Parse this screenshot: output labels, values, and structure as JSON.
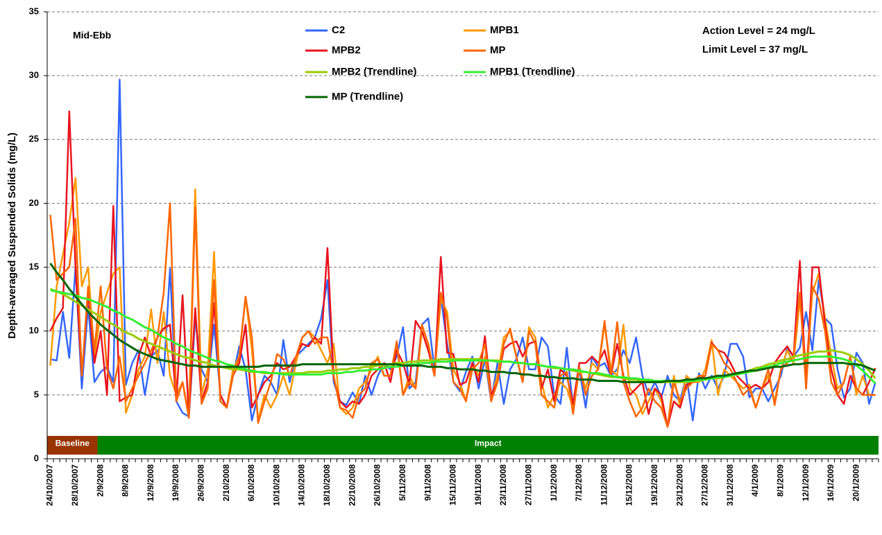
{
  "chart_data": {
    "type": "line",
    "y_label": "Depth-averaged Suspended Solids (mg/L)",
    "annotations": [
      "Mid-Ebb",
      "Action Level = 24 mg/L",
      "Limit Level = 37 mg/L"
    ],
    "phases": [
      {
        "label": "Baseline",
        "color": "#993300"
      },
      {
        "label": "Impact",
        "color": "#008000"
      }
    ],
    "ylim": [
      0,
      35
    ],
    "yticks": [
      0,
      5,
      10,
      15,
      20,
      25,
      30,
      35
    ],
    "grid": true,
    "categories": [
      "24/10/2007",
      null,
      null,
      null,
      "28/10/2007",
      null,
      null,
      null,
      "2/9/2008",
      null,
      null,
      null,
      "8/9/2008",
      null,
      null,
      null,
      "12/9/2008",
      null,
      null,
      null,
      "19/9/2008",
      null,
      null,
      null,
      "26/9/2008",
      null,
      null,
      null,
      "2/10/2008",
      null,
      null,
      null,
      "6/10/2008",
      null,
      null,
      null,
      "10/10/2008",
      null,
      null,
      null,
      "14/10/2008",
      null,
      null,
      null,
      "18/10/2008",
      null,
      null,
      null,
      "22/10/2008",
      null,
      null,
      null,
      "26/10/2008",
      null,
      null,
      null,
      "5/11/2008",
      null,
      null,
      null,
      "9/11/2008",
      null,
      null,
      null,
      "15/11/2008",
      null,
      null,
      null,
      "19/11/2008",
      null,
      null,
      null,
      "23/11/2008",
      null,
      null,
      null,
      "27/11/2008",
      null,
      null,
      null,
      "1/12/2008",
      null,
      null,
      null,
      "7/12/2008",
      null,
      null,
      null,
      "11/12/2008",
      null,
      null,
      null,
      "15/12/2008",
      null,
      null,
      null,
      "19/12/2008",
      null,
      null,
      null,
      "23/12/2008",
      null,
      null,
      null,
      "27/12/2008",
      null,
      null,
      null,
      "31/12/2008",
      null,
      null,
      null,
      "4/1/2009",
      null,
      null,
      null,
      "8/1/2009",
      null,
      null,
      null,
      "12/1/2009",
      null,
      null,
      null,
      "16/1/2009",
      null,
      null,
      null,
      "20/1/2009",
      null,
      null,
      null
    ],
    "series": [
      {
        "name": "C2",
        "color": "#3366ff",
        "values": [
          7.8,
          7.7,
          11.5,
          7.9,
          15.0,
          5.5,
          12.0,
          6.0,
          6.8,
          7.2,
          6.0,
          29.7,
          5.8,
          7.5,
          8.5,
          5.0,
          8.0,
          8.5,
          6.5,
          14.9,
          4.5,
          3.6,
          3.3,
          11.0,
          7.0,
          6.0,
          10.5,
          5.0,
          4.0,
          6.5,
          8.8,
          7.0,
          3.0,
          5.0,
          6.5,
          6.0,
          5.0,
          9.3,
          6.0,
          8.0,
          8.5,
          9.0,
          9.5,
          11.0,
          14.0,
          6.0,
          4.5,
          4.2,
          5.2,
          4.3,
          6.5,
          5.0,
          6.5,
          7.5,
          7.0,
          8.0,
          10.3,
          5.5,
          6.0,
          10.5,
          11.0,
          7.0,
          12.7,
          9.0,
          6.0,
          5.3,
          6.8,
          8.0,
          5.5,
          7.8,
          4.5,
          7.5,
          4.3,
          7.0,
          7.8,
          9.5,
          7.0,
          7.0,
          9.5,
          8.8,
          5.0,
          4.3,
          8.7,
          4.0,
          7.0,
          4.0,
          8.0,
          7.2,
          7.5,
          6.5,
          7.0,
          8.5,
          7.5,
          9.5,
          6.5,
          5.0,
          6.0,
          4.8,
          6.5,
          5.0,
          4.5,
          6.5,
          3.0,
          6.7,
          5.5,
          6.5,
          5.5,
          6.5,
          9.0,
          9.0,
          8.0,
          4.8,
          5.5,
          5.5,
          4.5,
          5.5,
          6.5,
          8.7,
          8.0,
          8.7,
          11.5,
          8.5,
          14.0,
          11.0,
          10.5,
          7.0,
          4.8,
          5.5,
          8.3,
          7.5,
          4.3,
          6.0
        ]
      },
      {
        "name": "MPB1",
        "color": "#ff9900",
        "values": [
          7.3,
          13.5,
          16.0,
          18.5,
          22.0,
          13.5,
          15.0,
          8.0,
          11.5,
          13.0,
          14.5,
          15.0,
          3.6,
          5.0,
          7.0,
          8.0,
          11.7,
          7.5,
          11.5,
          6.5,
          5.0,
          6.0,
          3.5,
          21.1,
          5.0,
          7.0,
          16.2,
          4.5,
          4.0,
          7.0,
          8.0,
          12.7,
          8.5,
          3.0,
          5.0,
          4.0,
          5.0,
          6.5,
          5.0,
          7.5,
          9.5,
          10.0,
          9.5,
          8.5,
          7.5,
          9.0,
          4.0,
          3.5,
          4.0,
          5.5,
          6.0,
          7.0,
          8.0,
          6.5,
          6.5,
          9.0,
          5.0,
          6.5,
          5.5,
          10.0,
          8.5,
          6.7,
          12.5,
          11.5,
          7.0,
          6.0,
          4.5,
          7.5,
          6.5,
          8.0,
          4.8,
          6.5,
          9.5,
          10.0,
          8.0,
          6.0,
          10.3,
          9.5,
          6.0,
          4.0,
          5.0,
          6.0,
          5.5,
          4.0,
          7.0,
          5.5,
          7.5,
          7.0,
          10.5,
          7.0,
          6.5,
          10.5,
          5.5,
          5.0,
          3.5,
          4.5,
          5.5,
          4.5,
          2.5,
          6.5,
          4.0,
          6.5,
          6.0,
          6.0,
          7.0,
          9.3,
          5.0,
          7.0,
          6.5,
          6.0,
          5.5,
          5.8,
          4.0,
          5.5,
          6.5,
          4.5,
          7.0,
          8.5,
          7.5,
          12.5,
          7.0,
          13.0,
          14.5,
          11.0,
          8.0,
          5.5,
          6.0,
          8.0,
          5.0,
          6.5,
          5.0,
          5.0
        ]
      },
      {
        "name": "MPB2",
        "color": "#e8141e",
        "values": [
          10.0,
          11.0,
          11.8,
          27.2,
          15.0,
          6.5,
          13.0,
          7.5,
          10.0,
          5.0,
          19.8,
          4.5,
          4.8,
          5.0,
          8.0,
          9.5,
          8.0,
          9.5,
          10.2,
          10.5,
          4.5,
          12.8,
          3.3,
          11.8,
          4.5,
          6.0,
          12.2,
          5.0,
          4.0,
          6.5,
          7.5,
          10.5,
          4.0,
          5.0,
          6.0,
          6.5,
          7.5,
          7.0,
          7.2,
          8.0,
          9.0,
          8.8,
          9.5,
          9.0,
          16.5,
          6.3,
          4.5,
          4.0,
          4.5,
          4.3,
          5.0,
          6.5,
          7.0,
          7.5,
          6.0,
          8.5,
          7.5,
          5.8,
          10.8,
          10.0,
          8.5,
          6.5,
          15.8,
          8.3,
          8.2,
          5.8,
          6.0,
          7.5,
          6.0,
          9.6,
          5.0,
          6.0,
          8.6,
          9.0,
          9.2,
          8.0,
          9.0,
          9.2,
          5.5,
          7.0,
          4.5,
          7.0,
          6.5,
          4.3,
          7.5,
          7.5,
          8.0,
          7.5,
          8.5,
          6.5,
          9.0,
          6.5,
          5.0,
          5.5,
          6.0,
          3.5,
          5.5,
          5.0,
          2.5,
          4.5,
          4.0,
          5.8,
          6.0,
          6.2,
          6.5,
          9.1,
          8.5,
          8.3,
          7.5,
          6.5,
          6.0,
          5.5,
          5.8,
          5.5,
          6.0,
          7.5,
          8.2,
          8.8,
          8.0,
          15.5,
          5.5,
          15.0,
          15.0,
          10.5,
          7.0,
          5.0,
          4.3,
          6.5,
          5.5,
          5.0,
          6.0,
          7.1
        ]
      },
      {
        "name": "MP",
        "color": "#ff6600",
        "values": [
          19.1,
          14.0,
          14.5,
          15.0,
          18.8,
          6.5,
          13.5,
          8.5,
          13.5,
          7.0,
          5.5,
          8.0,
          4.5,
          5.5,
          6.5,
          7.5,
          8.5,
          9.5,
          13.0,
          20.0,
          4.5,
          6.0,
          3.2,
          19.7,
          4.3,
          5.5,
          14.0,
          4.5,
          4.0,
          6.5,
          8.0,
          12.7,
          9.5,
          2.8,
          4.5,
          6.0,
          8.2,
          7.8,
          6.5,
          8.0,
          9.5,
          10.0,
          9.0,
          9.5,
          9.5,
          6.5,
          4.0,
          3.8,
          3.2,
          5.0,
          5.5,
          7.5,
          7.8,
          6.5,
          6.5,
          9.2,
          5.0,
          6.0,
          5.5,
          10.5,
          9.0,
          6.5,
          13.0,
          11.0,
          6.0,
          5.5,
          4.5,
          7.0,
          7.5,
          9.0,
          4.5,
          6.0,
          9.0,
          10.2,
          8.0,
          6.0,
          10.0,
          9.0,
          5.0,
          4.5,
          4.0,
          6.5,
          6.8,
          3.5,
          7.2,
          5.0,
          6.5,
          7.0,
          10.8,
          6.5,
          10.7,
          6.0,
          4.5,
          3.3,
          4.0,
          5.5,
          4.5,
          4.0,
          2.5,
          6.0,
          4.5,
          5.5,
          6.0,
          6.5,
          6.5,
          9.0,
          8.5,
          7.5,
          7.0,
          6.0,
          5.0,
          5.5,
          4.0,
          5.5,
          7.0,
          4.2,
          7.0,
          7.5,
          8.0,
          13.0,
          5.5,
          13.5,
          12.5,
          10.0,
          6.0,
          5.0,
          6.0,
          8.0,
          5.5,
          5.0,
          5.0,
          5.0
        ]
      },
      {
        "name": "MPB2 (Trendline)",
        "color": "#99cc00",
        "values": [
          13.3,
          13.1,
          12.9,
          12.6,
          12.3,
          12.0,
          11.7,
          11.4,
          11.1,
          10.8,
          10.5,
          10.2,
          9.9,
          9.7,
          9.4,
          9.2,
          9.0,
          8.8,
          8.6,
          8.4,
          8.2,
          8.0,
          7.9,
          7.7,
          7.6,
          7.5,
          7.3,
          7.2,
          7.1,
          7.0,
          7.0,
          6.9,
          6.8,
          6.8,
          6.7,
          6.7,
          6.7,
          6.7,
          6.7,
          6.7,
          6.7,
          6.8,
          6.8,
          6.8,
          6.9,
          6.9,
          7.0,
          7.0,
          7.1,
          7.1,
          7.2,
          7.2,
          7.3,
          7.3,
          7.4,
          7.5,
          7.5,
          7.6,
          7.6,
          7.7,
          7.7,
          7.7,
          7.8,
          7.8,
          7.8,
          7.8,
          7.8,
          7.8,
          7.8,
          7.7,
          7.7,
          7.7,
          7.6,
          7.6,
          7.5,
          7.5,
          7.4,
          7.4,
          7.3,
          7.2,
          7.1,
          7.1,
          7.0,
          6.9,
          6.8,
          6.8,
          6.7,
          6.6,
          6.5,
          6.4,
          6.4,
          6.3,
          6.2,
          6.2,
          6.1,
          6.1,
          6.0,
          6.0,
          6.0,
          6.0,
          6.0,
          6.0,
          6.1,
          6.1,
          6.2,
          6.3,
          6.3,
          6.4,
          6.5,
          6.7,
          6.8,
          6.9,
          7.1,
          7.2,
          7.4,
          7.5,
          7.7,
          7.8,
          8.0,
          8.1,
          8.2,
          8.3,
          8.4,
          8.4,
          8.5,
          8.4,
          8.3,
          8.1,
          7.8,
          7.4,
          6.9,
          6.3
        ]
      },
      {
        "name": "MPB1 (Trendline)",
        "color": "#33ee33",
        "values": [
          13.2,
          13.1,
          13.0,
          12.9,
          12.8,
          12.6,
          12.5,
          12.3,
          12.1,
          11.9,
          11.6,
          11.4,
          11.1,
          10.9,
          10.6,
          10.3,
          10.1,
          9.8,
          9.5,
          9.3,
          9.0,
          8.8,
          8.5,
          8.3,
          8.1,
          7.9,
          7.7,
          7.6,
          7.4,
          7.3,
          7.1,
          7.0,
          6.9,
          6.8,
          6.8,
          6.7,
          6.7,
          6.6,
          6.6,
          6.6,
          6.6,
          6.6,
          6.6,
          6.6,
          6.7,
          6.7,
          6.7,
          6.8,
          6.8,
          6.9,
          6.9,
          7.0,
          7.0,
          7.1,
          7.2,
          7.2,
          7.3,
          7.4,
          7.4,
          7.5,
          7.5,
          7.6,
          7.6,
          7.6,
          7.7,
          7.7,
          7.7,
          7.7,
          7.7,
          7.7,
          7.7,
          7.6,
          7.6,
          7.6,
          7.5,
          7.5,
          7.4,
          7.4,
          7.3,
          7.2,
          7.2,
          7.1,
          7.0,
          7.0,
          6.9,
          6.8,
          6.7,
          6.7,
          6.6,
          6.5,
          6.4,
          6.4,
          6.3,
          6.3,
          6.2,
          6.2,
          6.1,
          6.1,
          6.1,
          6.1,
          6.1,
          6.1,
          6.1,
          6.2,
          6.2,
          6.3,
          6.4,
          6.4,
          6.5,
          6.6,
          6.7,
          6.8,
          6.9,
          7.1,
          7.2,
          7.3,
          7.5,
          7.6,
          7.7,
          7.8,
          7.9,
          8.0,
          8.0,
          8.0,
          8.0,
          7.9,
          7.8,
          7.6,
          7.3,
          6.9,
          6.4,
          5.9
        ]
      },
      {
        "name": "MP (Trendline)",
        "color": "#006600",
        "values": [
          15.3,
          14.6,
          14.0,
          13.3,
          12.7,
          12.1,
          11.5,
          11.0,
          10.5,
          10.1,
          9.7,
          9.3,
          9.0,
          8.7,
          8.4,
          8.2,
          8.0,
          7.8,
          7.7,
          7.6,
          7.5,
          7.4,
          7.3,
          7.3,
          7.2,
          7.2,
          7.2,
          7.2,
          7.2,
          7.2,
          7.2,
          7.2,
          7.2,
          7.2,
          7.3,
          7.3,
          7.3,
          7.3,
          7.3,
          7.3,
          7.4,
          7.4,
          7.4,
          7.4,
          7.4,
          7.4,
          7.4,
          7.4,
          7.4,
          7.4,
          7.4,
          7.4,
          7.4,
          7.4,
          7.4,
          7.4,
          7.3,
          7.3,
          7.3,
          7.3,
          7.2,
          7.2,
          7.2,
          7.1,
          7.1,
          7.0,
          7.0,
          7.0,
          6.9,
          6.9,
          6.8,
          6.8,
          6.8,
          6.7,
          6.7,
          6.6,
          6.6,
          6.5,
          6.5,
          6.4,
          6.4,
          6.3,
          6.3,
          6.3,
          6.2,
          6.2,
          6.2,
          6.1,
          6.1,
          6.1,
          6.1,
          6.0,
          6.0,
          6.0,
          6.0,
          6.0,
          6.0,
          6.0,
          6.1,
          6.1,
          6.1,
          6.2,
          6.2,
          6.3,
          6.3,
          6.4,
          6.5,
          6.5,
          6.6,
          6.7,
          6.8,
          6.9,
          6.9,
          7.0,
          7.1,
          7.2,
          7.2,
          7.3,
          7.4,
          7.4,
          7.5,
          7.5,
          7.5,
          7.5,
          7.5,
          7.5,
          7.5,
          7.4,
          7.4,
          7.3,
          7.1,
          6.9
        ]
      }
    ]
  }
}
